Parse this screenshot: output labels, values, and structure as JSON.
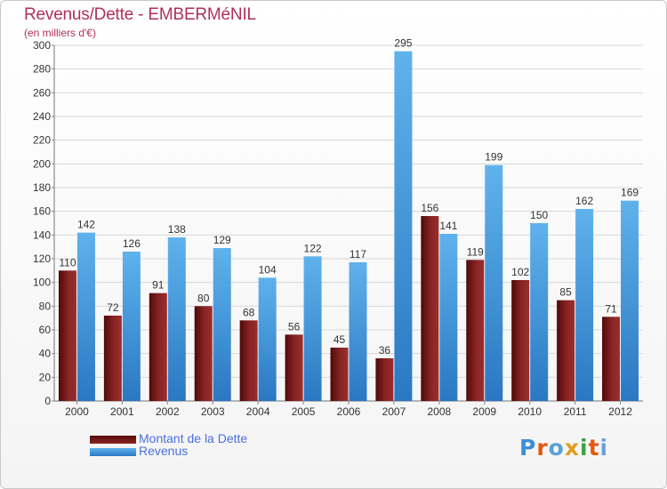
{
  "header": {
    "title": "Revenus/Dette - EMBERMéNIL",
    "subtitle": "(en milliers d'€)"
  },
  "legend": {
    "items": [
      {
        "label": "Montant de la Dette",
        "color": "#7a1a1a"
      },
      {
        "label": "Revenus",
        "color": "#3d9be0"
      }
    ]
  },
  "logo": {
    "text": "Proxiti",
    "letter_colors": [
      "#3a8fd8",
      "#e05a10",
      "#5aa0d8",
      "#e0a020",
      "#40a040",
      "#e05a10",
      "#6aa0e0"
    ]
  },
  "chart_data": {
    "type": "bar",
    "title": "Revenus/Dette - EMBERMéNIL",
    "subtitle": "(en milliers d'€)",
    "xlabel": "",
    "ylabel": "",
    "categories": [
      "2000",
      "2001",
      "2002",
      "2003",
      "2004",
      "2005",
      "2006",
      "2007",
      "2008",
      "2009",
      "2010",
      "2011",
      "2012"
    ],
    "series": [
      {
        "name": "Montant de la Dette",
        "color": "#7a1a1a",
        "values": [
          110,
          72,
          91,
          80,
          68,
          56,
          45,
          36,
          156,
          119,
          102,
          85,
          71
        ]
      },
      {
        "name": "Revenus",
        "color": "#3d9be0",
        "values": [
          142,
          126,
          138,
          129,
          104,
          122,
          117,
          295,
          141,
          199,
          150,
          162,
          169
        ]
      }
    ],
    "ylim": [
      0,
      300
    ],
    "yticks": [
      0,
      20,
      40,
      60,
      80,
      100,
      120,
      140,
      160,
      180,
      200,
      220,
      240,
      260,
      280,
      300
    ],
    "grid": true,
    "legend_position": "bottom-left"
  }
}
